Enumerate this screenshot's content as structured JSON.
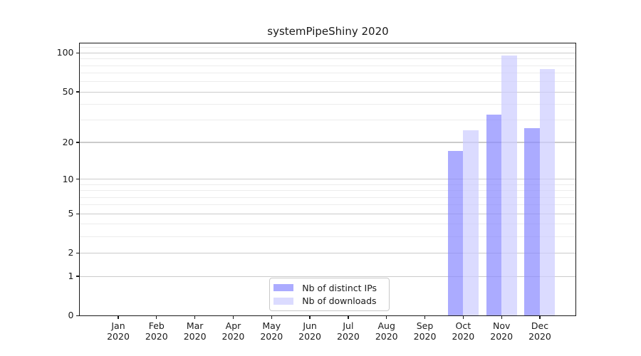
{
  "title": "systemPipeShiny 2020",
  "chart_data": {
    "type": "bar",
    "title": "systemPipeShiny 2020",
    "xlabel": "",
    "ylabel": "",
    "categories": [
      "Jan 2020",
      "Feb 2020",
      "Mar 2020",
      "Apr 2020",
      "May 2020",
      "Jun 2020",
      "Jul 2020",
      "Aug 2020",
      "Sep 2020",
      "Oct 2020",
      "Nov 2020",
      "Dec 2020"
    ],
    "series": [
      {
        "name": "Nb of distinct IPs",
        "color": "#8888ff",
        "values": [
          0,
          0,
          0,
          0,
          0,
          0,
          0,
          0,
          0,
          17,
          33,
          26
        ]
      },
      {
        "name": "Nb of downloads",
        "color": "#ccccff",
        "values": [
          0,
          0,
          0,
          0,
          0,
          0,
          0,
          0,
          0,
          25,
          96,
          75
        ]
      }
    ],
    "bar_alpha": 0.7,
    "yscale": "log1p",
    "ylim": [
      0,
      121
    ],
    "yticks": [
      0,
      1,
      2,
      5,
      10,
      20,
      50,
      100
    ],
    "yticks_minor": [
      3,
      4,
      6,
      7,
      8,
      9,
      30,
      40,
      60,
      70,
      80,
      90,
      110
    ],
    "grid": true,
    "legend_position": "lower center",
    "colors": {
      "major_grid": "#cbcbcb",
      "minor_grid": "#ececec",
      "spine": "#1a1a1a",
      "text": "#1a1a1a",
      "legend_border": "#c9c9c9",
      "background": "#ffffff"
    }
  }
}
